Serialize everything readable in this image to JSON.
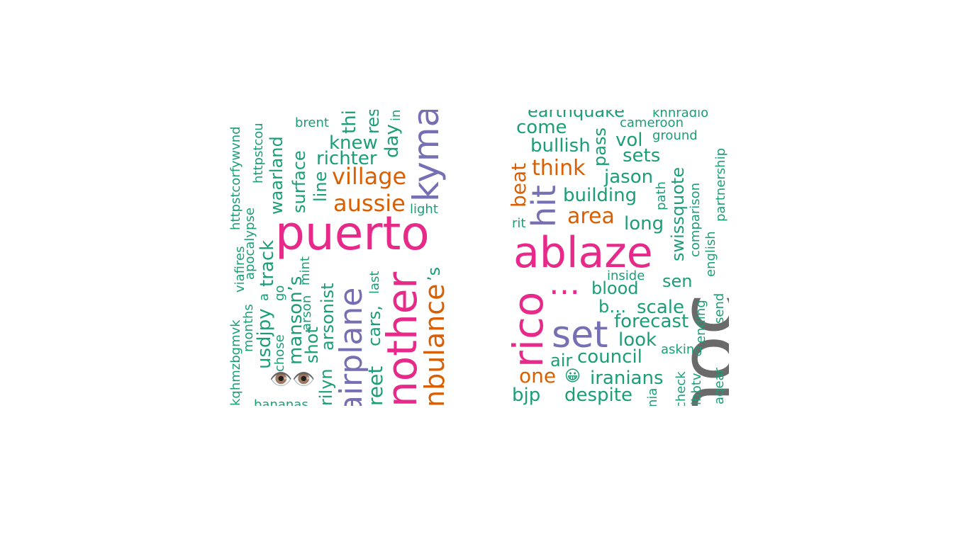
{
  "colors": {
    "gray": "#6a6a6a",
    "pink": "#e7298a",
    "purple": "#7570b3",
    "orange": "#d95f02",
    "green": "#1b9e77"
  },
  "cloud": {
    "words": [
      {
        "text": "ershoc",
        "color": "gray"
      },
      {
        "text": "puerto",
        "color": "pink"
      },
      {
        "text": "ablaze",
        "color": "pink"
      },
      {
        "text": "rico",
        "color": "pink"
      },
      {
        "text": "nother",
        "color": "pink"
      },
      {
        "text": "…",
        "color": "pink"
      },
      {
        "text": "kyma",
        "color": "purple"
      },
      {
        "text": "hit",
        "color": "purple"
      },
      {
        "text": "set",
        "color": "purple"
      },
      {
        "text": "airplane",
        "color": "purple"
      },
      {
        "text": "village",
        "color": "orange"
      },
      {
        "text": "aussie",
        "color": "orange"
      },
      {
        "text": "think",
        "color": "orange"
      },
      {
        "text": "area",
        "color": "orange"
      },
      {
        "text": "beat",
        "color": "orange"
      },
      {
        "text": "nbulance",
        "color": "orange"
      },
      {
        "text": "one",
        "color": "orange"
      },
      {
        "text": "earthquake",
        "color": "green"
      },
      {
        "text": "knhradio",
        "color": "green"
      },
      {
        "text": "come",
        "color": "green"
      },
      {
        "text": "cameroon",
        "color": "green"
      },
      {
        "text": "bullish",
        "color": "green"
      },
      {
        "text": "vol",
        "color": "green"
      },
      {
        "text": "ground",
        "color": "green"
      },
      {
        "text": "sets",
        "color": "green"
      },
      {
        "text": "jason",
        "color": "green"
      },
      {
        "text": "building",
        "color": "green"
      },
      {
        "text": "long",
        "color": "green"
      },
      {
        "text": "inside",
        "color": "green"
      },
      {
        "text": "blood",
        "color": "green"
      },
      {
        "text": "sen",
        "color": "green"
      },
      {
        "text": "b…",
        "color": "green"
      },
      {
        "text": "scale",
        "color": "green"
      },
      {
        "text": "forecast",
        "color": "green"
      },
      {
        "text": "look",
        "color": "green"
      },
      {
        "text": "asking",
        "color": "green"
      },
      {
        "text": "air",
        "color": "green"
      },
      {
        "text": "council",
        "color": "green"
      },
      {
        "text": "iranians",
        "color": "green"
      },
      {
        "text": "bjp",
        "color": "green"
      },
      {
        "text": "despite",
        "color": "green"
      },
      {
        "text": "brent",
        "color": "green"
      },
      {
        "text": "knew",
        "color": "green"
      },
      {
        "text": "richter",
        "color": "green"
      },
      {
        "text": "light",
        "color": "green"
      },
      {
        "text": "rit",
        "color": "green"
      },
      {
        "text": "pass",
        "color": "green"
      },
      {
        "text": "swissquote",
        "color": "green"
      },
      {
        "text": "path",
        "color": "green"
      },
      {
        "text": "comparison",
        "color": "green"
      },
      {
        "text": "partnership",
        "color": "green"
      },
      {
        "text": "english",
        "color": "green"
      },
      {
        "text": "ending",
        "color": "green"
      },
      {
        "text": "send",
        "color": "green"
      },
      {
        "text": "check",
        "color": "green"
      },
      {
        "text": "llbbtv",
        "color": "green"
      },
      {
        "text": "aqear",
        "color": "green"
      },
      {
        "text": "nia",
        "color": "green"
      },
      {
        "text": "httpstcorfywvnd",
        "color": "green"
      },
      {
        "text": "httpstcou",
        "color": "green"
      },
      {
        "text": "waarland",
        "color": "green"
      },
      {
        "text": "surface",
        "color": "green"
      },
      {
        "text": "line",
        "color": "green"
      },
      {
        "text": "thi",
        "color": "green"
      },
      {
        "text": "res",
        "color": "green"
      },
      {
        "text": "day",
        "color": "green"
      },
      {
        "text": "in",
        "color": "green"
      },
      {
        "text": "apocalypse",
        "color": "green"
      },
      {
        "text": "viafires",
        "color": "green"
      },
      {
        "text": "track",
        "color": "green"
      },
      {
        "text": "a",
        "color": "green"
      },
      {
        "text": "go",
        "color": "green"
      },
      {
        "text": "manson’s",
        "color": "green"
      },
      {
        "text": "mint",
        "color": "green"
      },
      {
        "text": "arson",
        "color": "green"
      },
      {
        "text": "arsonist",
        "color": "green"
      },
      {
        "text": "last",
        "color": "green"
      },
      {
        "text": "cars,",
        "color": "green"
      },
      {
        "text": "’s",
        "color": "green"
      },
      {
        "text": "kqhmzbgmvk",
        "color": "green"
      },
      {
        "text": "months",
        "color": "green"
      },
      {
        "text": "usdjpy",
        "color": "green"
      },
      {
        "text": "chose",
        "color": "green"
      },
      {
        "text": "shot",
        "color": "green"
      },
      {
        "text": "rilyn",
        "color": "green"
      },
      {
        "text": "reet",
        "color": "green"
      },
      {
        "text": "bananas",
        "color": "green"
      },
      {
        "text": "👁️👁️",
        "color": "green"
      },
      {
        "text": "😀",
        "color": "green"
      }
    ]
  }
}
